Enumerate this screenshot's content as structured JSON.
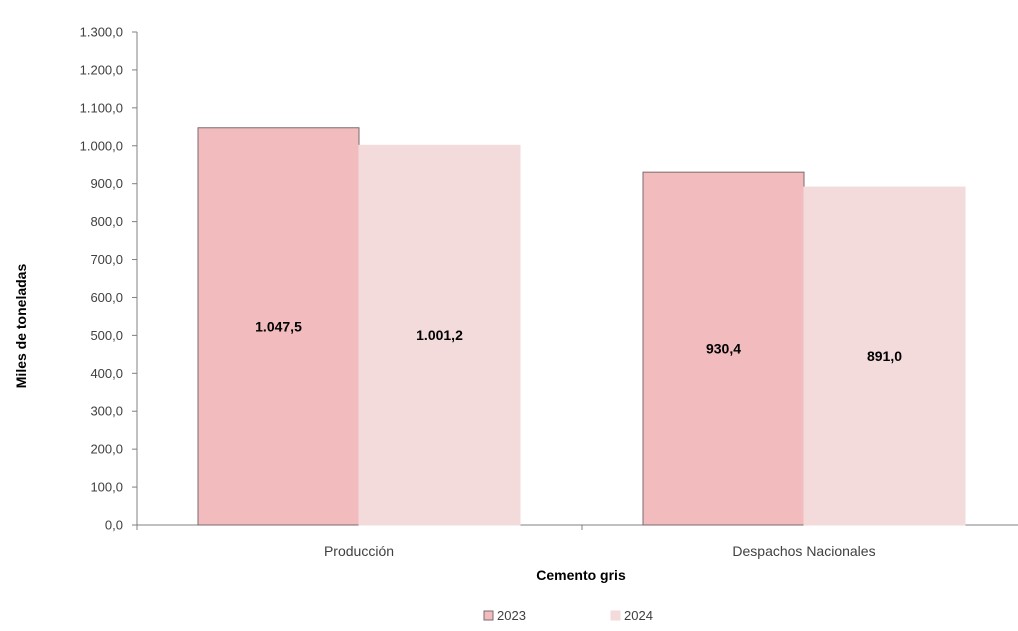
{
  "chart_data": {
    "type": "bar",
    "categories": [
      "Producción",
      "Despachos Nacionales"
    ],
    "series": [
      {
        "name": "2023",
        "values": [
          1047.5,
          930.4
        ],
        "labels": [
          "1.047,5",
          "930,4"
        ],
        "color": "#f2bcbf",
        "stroke": "#7a6a6c"
      },
      {
        "name": "2024",
        "values": [
          1001.2,
          891.0
        ],
        "labels": [
          "1.001,2",
          "891,0"
        ],
        "color": "#f3dadb",
        "stroke": "#f3dadb"
      }
    ],
    "xlabel": "Cemento gris",
    "ylabel": "Miles de toneladas",
    "ylim": [
      0,
      1300
    ],
    "ytick_step": 100,
    "yticks": [
      "0,0",
      "100,0",
      "200,0",
      "300,0",
      "400,0",
      "500,0",
      "600,0",
      "700,0",
      "800,0",
      "900,0",
      "1.000,0",
      "1.100,0",
      "1.200,0",
      "1.300,0"
    ],
    "grid": false,
    "legend_position": "bottom-center",
    "axis_color": "#808080"
  }
}
